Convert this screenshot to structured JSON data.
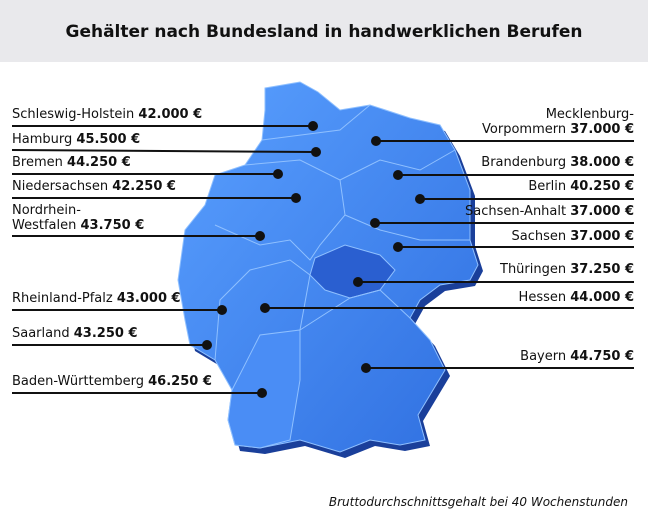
{
  "title": "Gehälter nach Bundesland in handwerklichen Berufen",
  "states": [
    {
      "name": "Schleswig-Holstein",
      "salary": "42.000 €"
    },
    {
      "name": "Hamburg",
      "salary": "45.500 €"
    },
    {
      "name": "Bremen",
      "salary": "44.250 €"
    },
    {
      "name": "Niedersachsen",
      "salary": "42.250 €"
    },
    {
      "name_lines": [
        "Nordrhein-",
        "Westfalen"
      ],
      "salary": "43.750 €"
    },
    {
      "name": "Rheinland-Pfalz",
      "salary": "43.000 €"
    },
    {
      "name": "Saarland",
      "salary": "43.250 €"
    },
    {
      "name": "Baden-Württemberg",
      "salary": "46.250 €"
    },
    {
      "name_lines": [
        "Mecklenburg-",
        "Vorpommern"
      ],
      "salary": "37.000 €"
    },
    {
      "name": "Brandenburg",
      "salary": "38.000 €"
    },
    {
      "name": "Berlin",
      "salary": "40.250 €"
    },
    {
      "name": "Sachsen-Anhalt",
      "salary": "37.000 €"
    },
    {
      "name": "Sachsen",
      "salary": "37.000 €"
    },
    {
      "name": "Thüringen",
      "salary": "37.250 €"
    },
    {
      "name": "Hessen",
      "salary": "44.000 €"
    },
    {
      "name": "Bayern",
      "salary": "44.750 €"
    }
  ],
  "footnote": "Bruttodurchschnittsgehalt bei 40 Wochenstunden"
}
